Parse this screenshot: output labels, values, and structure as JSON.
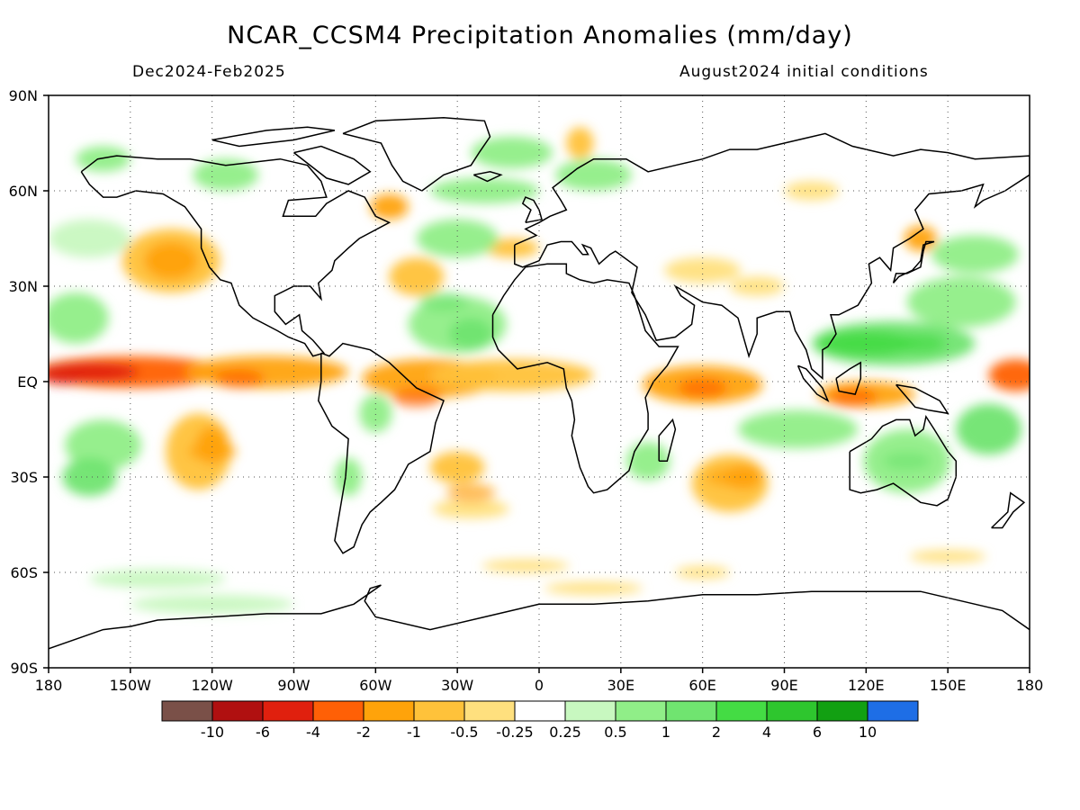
{
  "header": {
    "title": "NCAR_CCSM4 Precipitation Anomalies (mm/day)",
    "season": "Dec2024-Feb2025",
    "init": "August2024 initial conditions"
  },
  "axes": {
    "lat_labels": [
      "90N",
      "60N",
      "30N",
      "EQ",
      "30S",
      "60S",
      "90S"
    ],
    "lat_values": [
      90,
      60,
      30,
      0,
      -30,
      -60,
      -90
    ],
    "lon_labels": [
      "180",
      "150W",
      "120W",
      "90W",
      "60W",
      "30W",
      "0",
      "30E",
      "60E",
      "90E",
      "120E",
      "150E",
      "180"
    ],
    "lon_values": [
      -180,
      -150,
      -120,
      -90,
      -60,
      -30,
      0,
      30,
      60,
      90,
      120,
      150,
      180
    ]
  },
  "colorbar": {
    "colors": [
      "#7a5048",
      "#b01010",
      "#e0200e",
      "#ff6006",
      "#ffa30a",
      "#ffc23a",
      "#ffe07e",
      "#ffffff",
      "#c8f8c0",
      "#90ee88",
      "#70e470",
      "#44dc44",
      "#2ec62e",
      "#12a012",
      "#1e6ee6"
    ],
    "labels": [
      "-10",
      "-6",
      "-4",
      "-2",
      "-1",
      "-0.5",
      "-0.25",
      "0.25",
      "0.5",
      "1",
      "2",
      "4",
      "6",
      "10"
    ]
  },
  "anomaly_regions": [
    {
      "name": "equatorial-pacific-dry",
      "lon": -175,
      "lat": 2,
      "level": -4
    },
    {
      "name": "central-pacific-dry",
      "lon": -110,
      "lat": 1,
      "level": -2
    },
    {
      "name": "west-pacific-wet",
      "lon": 140,
      "lat": 12,
      "level": 2
    },
    {
      "name": "indian-ocean-dry",
      "lon": 60,
      "lat": -2,
      "level": -2
    },
    {
      "name": "maritime-continent-dry",
      "lon": 115,
      "lat": -5,
      "level": -2
    },
    {
      "name": "north-pacific-dry",
      "lon": -135,
      "lat": 38,
      "level": -1
    },
    {
      "name": "southeast-pacific-dry",
      "lon": -120,
      "lat": -22,
      "level": -1
    },
    {
      "name": "brazil-dry",
      "lon": -45,
      "lat": -5,
      "level": -2
    },
    {
      "name": "south-indian-dry",
      "lon": 70,
      "lat": -30,
      "level": -1
    },
    {
      "name": "australia-wet",
      "lon": 135,
      "lat": -25,
      "level": 1
    },
    {
      "name": "south-atlantic-dry",
      "lon": -25,
      "lat": -35,
      "level": -1
    },
    {
      "name": "north-atlantic-wet",
      "lon": -35,
      "lat": 25,
      "level": 1
    }
  ]
}
